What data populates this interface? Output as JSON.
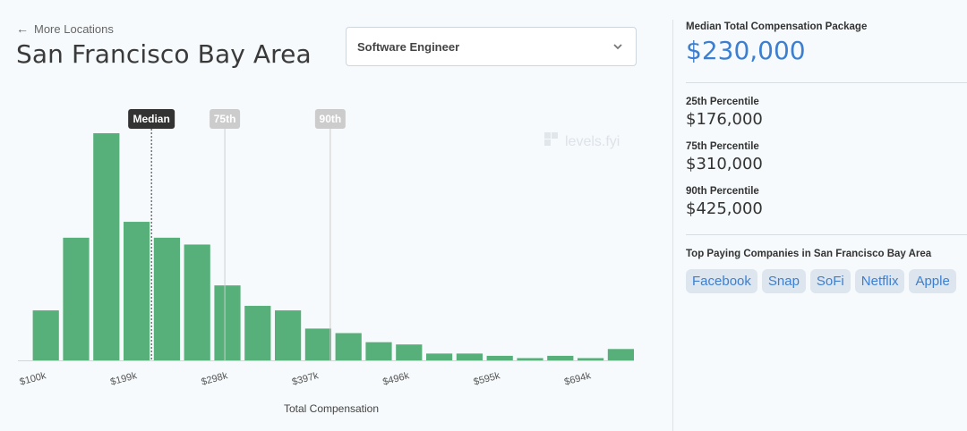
{
  "header": {
    "back_link": "More Locations",
    "title": "San Francisco Bay Area",
    "job_select": "Software Engineer"
  },
  "sidebar": {
    "median_label": "Median Total Compensation Package",
    "median_value": "$230,000",
    "percentiles": [
      {
        "label": "25th Percentile",
        "value": "$176,000"
      },
      {
        "label": "75th Percentile",
        "value": "$310,000"
      },
      {
        "label": "90th Percentile",
        "value": "$425,000"
      }
    ],
    "top_companies_label": "Top Paying Companies in San Francisco Bay Area",
    "companies": [
      "Facebook",
      "Snap",
      "SoFi",
      "Netflix",
      "Apple"
    ]
  },
  "colors": {
    "bar": "#57b07a",
    "accent": "#3d7fce",
    "median_marker": "#333333",
    "percentile_marker": "#cccccc"
  },
  "chart_data": {
    "type": "bar",
    "title": "",
    "xlabel": "Total Compensation",
    "ylabel": "",
    "x_ticks": [
      "$100k",
      "$199k",
      "$298k",
      "$397k",
      "$496k",
      "$595k",
      "$694k"
    ],
    "bin_start": 100,
    "bin_width": 33,
    "relative_counts": [
      22,
      54,
      100,
      61,
      54,
      51,
      33,
      24,
      22,
      14,
      12,
      8,
      7,
      3,
      3,
      2,
      1,
      2,
      1,
      5
    ],
    "ylim": [
      0,
      100
    ],
    "markers": [
      {
        "label": "Median",
        "value": 230,
        "style": "dark"
      },
      {
        "label": "75th",
        "value": 310,
        "style": "light"
      },
      {
        "label": "90th",
        "value": 425,
        "style": "light"
      }
    ],
    "watermark": "levels.fyi",
    "grid": false
  }
}
